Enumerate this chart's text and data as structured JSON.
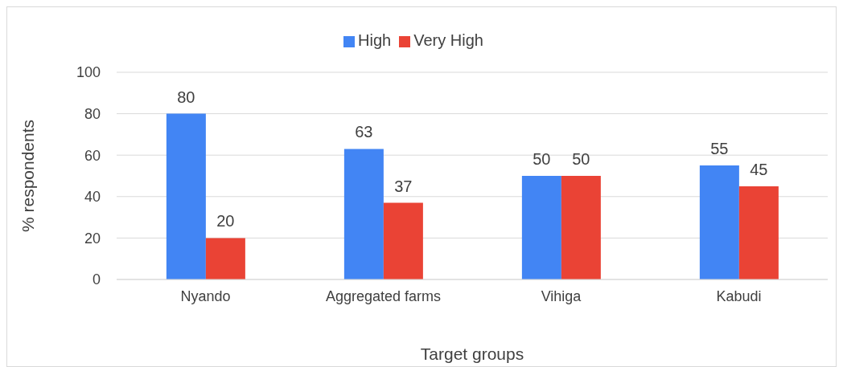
{
  "chart_data": {
    "type": "bar",
    "xlabel": "Target groups",
    "ylabel": "% respondents",
    "categories": [
      "Nyando",
      "Aggregated farms",
      "Vihiga",
      "Kabudi"
    ],
    "series": [
      {
        "name": "High",
        "color": "#4285f4",
        "values": [
          80,
          63,
          50,
          55
        ]
      },
      {
        "name": "Very High",
        "color": "#ea4335",
        "values": [
          20,
          37,
          50,
          45
        ]
      }
    ],
    "ylim": [
      0,
      100
    ],
    "yticks": [
      0,
      20,
      40,
      60,
      80,
      100
    ],
    "grid": "y",
    "legend": "top",
    "data_labels": true
  }
}
